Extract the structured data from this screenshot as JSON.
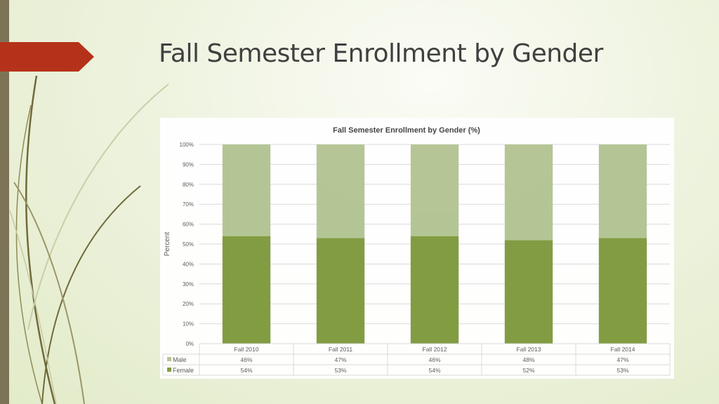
{
  "slide": {
    "title": "Fall Semester Enrollment by Gender"
  },
  "colors": {
    "female": "#7f9a3e",
    "male": "#b3c493",
    "accent_arrow": "#b5321a",
    "sidebar": "#7d7457"
  },
  "chart_data": {
    "type": "bar",
    "stacked": true,
    "title": "Fall Semester Enrollment by Gender (%)",
    "ylabel": "Percent",
    "xlabel": "",
    "ylim": [
      0,
      100
    ],
    "yticks": [
      "0%",
      "10%",
      "20%",
      "30%",
      "40%",
      "50%",
      "60%",
      "70%",
      "80%",
      "90%",
      "100%"
    ],
    "categories": [
      "Fall 2010",
      "Fall 2011",
      "Fall 2012",
      "Fall 2013",
      "Fall 2014"
    ],
    "series": [
      {
        "name": "Male",
        "values": [
          46,
          47,
          46,
          48,
          47
        ],
        "labels": [
          "46%",
          "47%",
          "46%",
          "48%",
          "47%"
        ]
      },
      {
        "name": "Female",
        "values": [
          54,
          53,
          54,
          52,
          53
        ],
        "labels": [
          "54%",
          "53%",
          "54%",
          "52%",
          "53%"
        ]
      }
    ],
    "grid": true,
    "legend": "data-table"
  }
}
